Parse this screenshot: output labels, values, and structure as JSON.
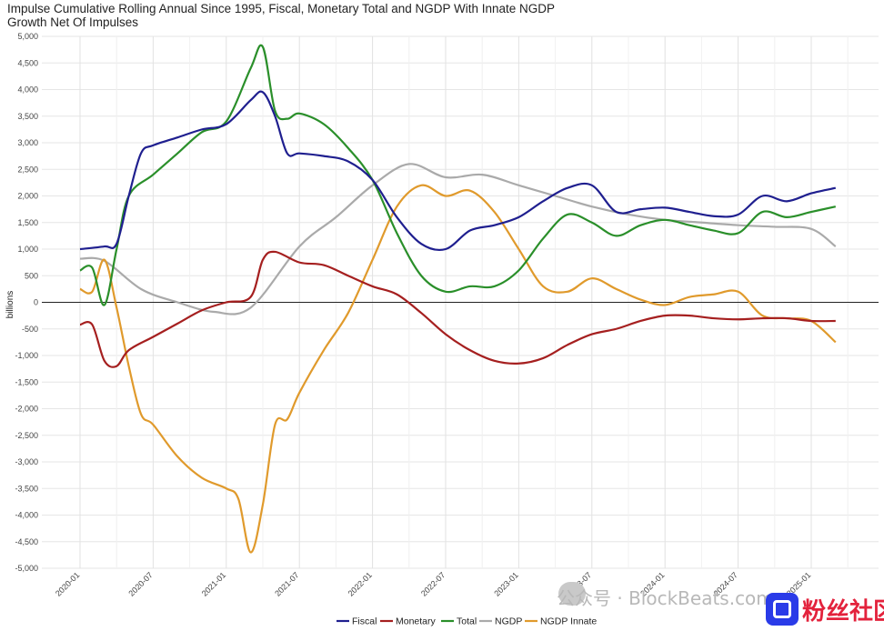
{
  "chart_data": {
    "type": "line",
    "title": "Impulse Cumulative Rolling Annual Since 1995, Fiscal, Monetary Total and NGDP With Innate NGDP Growth Net Of Impulses",
    "xlabel": "",
    "ylabel": "billions",
    "ylim": [
      -5000,
      5000
    ],
    "y_ticks": [
      5000,
      4500,
      4000,
      3500,
      3000,
      2500,
      2000,
      1500,
      1000,
      500,
      0,
      -500,
      -1000,
      -1500,
      -2000,
      -2500,
      -3000,
      -3500,
      -4000,
      -4500,
      -5000
    ],
    "y_tick_labels": [
      "5,000",
      "4,500",
      "4,000",
      "3,500",
      "3,000",
      "2,500",
      "2,000",
      "1,500",
      "1,000",
      "500",
      "0",
      "-500",
      "-1,000",
      "-1,500",
      "-2,000",
      "-2,500",
      "-3,000",
      "-3,500",
      "-4,000",
      "-4,500",
      "-5,000"
    ],
    "x_ticks": [
      "2020-01",
      "2020-07",
      "2021-01",
      "2021-07",
      "2022-01",
      "2022-07",
      "2023-01",
      "2023-07",
      "2024-01",
      "2024-07",
      "2025-01"
    ],
    "x_range": [
      "2020-01",
      "2025-03"
    ],
    "grid": true,
    "legend_position": "bottom",
    "series": [
      {
        "name": "Fiscal",
        "color": "#1f1f8f",
        "x": [
          "2020-01",
          "2020-03",
          "2020-04",
          "2020-05",
          "2020-06",
          "2020-07",
          "2020-09",
          "2020-11",
          "2021-01",
          "2021-03",
          "2021-04",
          "2021-05",
          "2021-06",
          "2021-07",
          "2021-09",
          "2021-11",
          "2022-01",
          "2022-03",
          "2022-05",
          "2022-07",
          "2022-09",
          "2022-11",
          "2023-01",
          "2023-03",
          "2023-05",
          "2023-07",
          "2023-09",
          "2023-11",
          "2024-01",
          "2024-03",
          "2024-05",
          "2024-07",
          "2024-09",
          "2024-11",
          "2025-01",
          "2025-03"
        ],
        "y": [
          1000,
          1050,
          1100,
          2000,
          2800,
          2950,
          3100,
          3250,
          3350,
          3800,
          3950,
          3500,
          2800,
          2800,
          2750,
          2650,
          2300,
          1600,
          1100,
          1000,
          1350,
          1450,
          1600,
          1900,
          2150,
          2200,
          1700,
          1750,
          1780,
          1700,
          1620,
          1650,
          2000,
          1900,
          2050,
          2150
        ]
      },
      {
        "name": "Monetary",
        "color": "#a51f1f",
        "x": [
          "2020-01",
          "2020-02",
          "2020-03",
          "2020-04",
          "2020-05",
          "2020-07",
          "2020-09",
          "2020-11",
          "2021-01",
          "2021-03",
          "2021-04",
          "2021-05",
          "2021-07",
          "2021-09",
          "2021-11",
          "2022-01",
          "2022-03",
          "2022-05",
          "2022-07",
          "2022-09",
          "2022-11",
          "2023-01",
          "2023-03",
          "2023-05",
          "2023-07",
          "2023-09",
          "2023-11",
          "2024-01",
          "2024-03",
          "2024-05",
          "2024-07",
          "2024-09",
          "2024-11",
          "2025-01",
          "2025-03"
        ],
        "y": [
          -420,
          -420,
          -1100,
          -1200,
          -900,
          -650,
          -400,
          -150,
          0,
          100,
          800,
          950,
          750,
          700,
          500,
          300,
          150,
          -200,
          -600,
          -900,
          -1100,
          -1150,
          -1050,
          -800,
          -600,
          -500,
          -350,
          -250,
          -250,
          -300,
          -320,
          -300,
          -300,
          -350,
          -350
        ]
      },
      {
        "name": "Total",
        "color": "#2a8f2a",
        "x": [
          "2020-01",
          "2020-02",
          "2020-03",
          "2020-04",
          "2020-05",
          "2020-07",
          "2020-09",
          "2020-11",
          "2021-01",
          "2021-03",
          "2021-04",
          "2021-05",
          "2021-06",
          "2021-07",
          "2021-09",
          "2021-11",
          "2022-01",
          "2022-03",
          "2022-05",
          "2022-07",
          "2022-09",
          "2022-11",
          "2023-01",
          "2023-03",
          "2023-05",
          "2023-07",
          "2023-09",
          "2023-11",
          "2024-01",
          "2024-03",
          "2024-05",
          "2024-07",
          "2024-09",
          "2024-11",
          "2025-01",
          "2025-03"
        ],
        "y": [
          600,
          650,
          -50,
          1000,
          2000,
          2400,
          2800,
          3200,
          3400,
          4400,
          4800,
          3600,
          3450,
          3550,
          3350,
          2900,
          2300,
          1300,
          500,
          200,
          300,
          300,
          600,
          1200,
          1650,
          1500,
          1250,
          1450,
          1550,
          1450,
          1350,
          1300,
          1700,
          1600,
          1700,
          1800
        ]
      },
      {
        "name": "NGDP",
        "color": "#aaaaaa",
        "x": [
          "2020-01",
          "2020-03",
          "2020-06",
          "2020-09",
          "2020-12",
          "2021-03",
          "2021-07",
          "2021-10",
          "2022-01",
          "2022-04",
          "2022-07",
          "2022-10",
          "2023-01",
          "2023-04",
          "2023-07",
          "2023-10",
          "2024-01",
          "2024-04",
          "2024-07",
          "2024-10",
          "2025-01",
          "2025-03"
        ],
        "y": [
          820,
          780,
          250,
          0,
          -180,
          -100,
          1050,
          1600,
          2200,
          2600,
          2350,
          2400,
          2200,
          2000,
          1800,
          1650,
          1550,
          1500,
          1450,
          1420,
          1380,
          1050
        ]
      },
      {
        "name": "NGDP Innate",
        "color": "#e09a2c",
        "x": [
          "2020-01",
          "2020-02",
          "2020-03",
          "2020-04",
          "2020-05",
          "2020-06",
          "2020-07",
          "2020-09",
          "2020-11",
          "2021-01",
          "2021-02",
          "2021-03",
          "2021-04",
          "2021-05",
          "2021-06",
          "2021-07",
          "2021-09",
          "2021-11",
          "2022-01",
          "2022-03",
          "2022-05",
          "2022-07",
          "2022-09",
          "2022-11",
          "2023-01",
          "2023-03",
          "2023-05",
          "2023-07",
          "2023-09",
          "2023-11",
          "2024-01",
          "2024-03",
          "2024-05",
          "2024-07",
          "2024-09",
          "2024-11",
          "2025-01",
          "2025-03"
        ],
        "y": [
          250,
          200,
          800,
          -100,
          -1200,
          -2100,
          -2300,
          -2900,
          -3300,
          -3500,
          -3700,
          -4700,
          -3800,
          -2300,
          -2200,
          -1700,
          -900,
          -200,
          800,
          1800,
          2200,
          2000,
          2100,
          1700,
          1000,
          300,
          200,
          450,
          250,
          50,
          -50,
          100,
          150,
          200,
          -250,
          -300,
          -350,
          -750
        ]
      }
    ]
  },
  "legend": [
    {
      "label": "Fiscal",
      "color": "#1f1f8f"
    },
    {
      "label": "Monetary",
      "color": "#a51f1f"
    },
    {
      "label": "Total",
      "color": "#2a8f2a"
    },
    {
      "label": "NGDP",
      "color": "#aaaaaa"
    },
    {
      "label": "NGDP Innate",
      "color": "#e09a2c"
    }
  ],
  "watermark": {
    "text": "公众号 · BlockBeats.com",
    "icon": "wechat-icon"
  },
  "logo": {
    "text": "粉丝社区",
    "icon": "pp-logo-icon"
  }
}
